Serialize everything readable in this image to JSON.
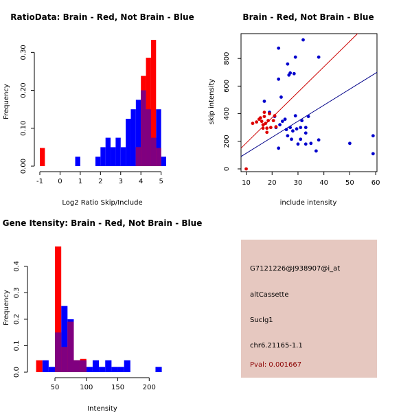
{
  "colors": {
    "red": "#ff0000",
    "blue": "#0000ff",
    "overlap": "#800080",
    "dot_red": "#dd0000",
    "dot_blue": "#0000cc",
    "line_red": "#cc0000",
    "line_blue": "#000088",
    "panel_bg": "#e6c8c0",
    "pval": "#8b0000"
  },
  "chart_data": [
    {
      "type": "histogram",
      "title": "RatioData: Brain - Red, Not Brain - Blue",
      "xlabel": "Log2 Ratio Skip/Include",
      "ylabel": "Frequency",
      "xlim": [
        -1,
        5.25
      ],
      "ylim": [
        0,
        0.335
      ],
      "xticks": [
        -1,
        0,
        1,
        2,
        3,
        4,
        5
      ],
      "yticks": [
        0.0,
        0.1,
        0.2,
        0.3
      ],
      "ytick_labels": [
        "0.00",
        "0.10",
        "0.20",
        "0.30"
      ],
      "bin_width": 0.25,
      "series": [
        {
          "name": "Not Brain",
          "color": "blue",
          "bins": [
            [
              0.75,
              0.025
            ],
            [
              1.75,
              0.025
            ],
            [
              2.0,
              0.05
            ],
            [
              2.25,
              0.075
            ],
            [
              2.5,
              0.05
            ],
            [
              2.75,
              0.075
            ],
            [
              3.0,
              0.05
            ],
            [
              3.25,
              0.125
            ],
            [
              3.5,
              0.15
            ],
            [
              3.75,
              0.175
            ],
            [
              4.0,
              0.2
            ],
            [
              4.25,
              0.15
            ],
            [
              4.5,
              0.075
            ],
            [
              4.75,
              0.15
            ],
            [
              5.0,
              0.025
            ]
          ]
        },
        {
          "name": "Brain",
          "color": "red",
          "bins": [
            [
              -1.0,
              0.048
            ],
            [
              3.75,
              0.05
            ],
            [
              4.0,
              0.238
            ],
            [
              4.25,
              0.286
            ],
            [
              4.5,
              0.333
            ],
            [
              4.75,
              0.048
            ]
          ]
        }
      ]
    },
    {
      "type": "scatter",
      "title": "Brain - Red, Not Brain - Blue",
      "xlabel": "include intensity",
      "ylabel": "skip intensity",
      "xlim": [
        8,
        60.5
      ],
      "ylim": [
        -20,
        980
      ],
      "xticks": [
        10,
        20,
        30,
        40,
        50,
        60
      ],
      "yticks": [
        0,
        200,
        400,
        600,
        800
      ],
      "series": [
        {
          "name": "Not Brain",
          "color": "blue",
          "points": [
            [
              32,
              935
            ],
            [
              22.5,
              875
            ],
            [
              38,
              810
            ],
            [
              26,
              760
            ],
            [
              27,
              695
            ],
            [
              28.5,
              690
            ],
            [
              29,
              810
            ],
            [
              22.5,
              650
            ],
            [
              26.5,
              680
            ],
            [
              23.5,
              520
            ],
            [
              17,
              490
            ],
            [
              19,
              410
            ],
            [
              21,
              380
            ],
            [
              25,
              360
            ],
            [
              29,
              385
            ],
            [
              34,
              380
            ],
            [
              21.5,
              300
            ],
            [
              23,
              320
            ],
            [
              24,
              345
            ],
            [
              25.5,
              285
            ],
            [
              27,
              300
            ],
            [
              28,
              275
            ],
            [
              29.5,
              290
            ],
            [
              31,
              300
            ],
            [
              31.5,
              350
            ],
            [
              33,
              300
            ],
            [
              33,
              260
            ],
            [
              26,
              240
            ],
            [
              27.5,
              215
            ],
            [
              31,
              215
            ],
            [
              30,
              180
            ],
            [
              33,
              180
            ],
            [
              35,
              185
            ],
            [
              37,
              130
            ],
            [
              38,
              210
            ],
            [
              22.5,
              150
            ],
            [
              50,
              185
            ],
            [
              59,
              240
            ],
            [
              59,
              110
            ]
          ]
        },
        {
          "name": "Brain",
          "color": "red",
          "points": [
            [
              10,
              0
            ],
            [
              12.5,
              330
            ],
            [
              14,
              340
            ],
            [
              15,
              360
            ],
            [
              15.5,
              370
            ],
            [
              16,
              345
            ],
            [
              16.5,
              320
            ],
            [
              17,
              380
            ],
            [
              17,
              410
            ],
            [
              17.5,
              330
            ],
            [
              18,
              295
            ],
            [
              18.5,
              350
            ],
            [
              19,
              400
            ],
            [
              19.5,
              300
            ],
            [
              20.5,
              350
            ],
            [
              21,
              385
            ],
            [
              21.5,
              305
            ],
            [
              16.5,
              295
            ],
            [
              18,
              265
            ]
          ]
        }
      ],
      "fit_lines": [
        {
          "name": "Brain fit",
          "color": "red",
          "from": [
            8,
            150
          ],
          "to": [
            53,
            980
          ]
        },
        {
          "name": "Not Brain fit",
          "color": "blue",
          "from": [
            8,
            90
          ],
          "to": [
            60.5,
            700
          ]
        }
      ]
    },
    {
      "type": "histogram",
      "title": "Gene Itensity: Brain - Red, Not Brain - Blue",
      "xlabel": "Intensity",
      "ylabel": "Frequency",
      "xlim": [
        15,
        227
      ],
      "ylim": [
        0,
        0.48
      ],
      "xticks": [
        50,
        100,
        150,
        200
      ],
      "yticks": [
        0.0,
        0.1,
        0.2,
        0.3,
        0.4
      ],
      "ytick_labels": [
        "0.0",
        "0.1",
        "0.2",
        "0.3",
        "0.4"
      ],
      "bin_width": 10,
      "series": [
        {
          "name": "Not Brain",
          "color": "blue",
          "bins": [
            [
              20,
              0.0
            ],
            [
              30,
              0.045
            ],
            [
              40,
              0.02
            ],
            [
              50,
              0.15
            ],
            [
              60,
              0.25
            ],
            [
              70,
              0.2
            ],
            [
              80,
              0.045
            ],
            [
              90,
              0.045
            ],
            [
              100,
              0.02
            ],
            [
              110,
              0.045
            ],
            [
              120,
              0.02
            ],
            [
              130,
              0.045
            ],
            [
              140,
              0.02
            ],
            [
              150,
              0.02
            ],
            [
              160,
              0.045
            ],
            [
              210,
              0.02
            ]
          ]
        },
        {
          "name": "Brain",
          "color": "red",
          "bins": [
            [
              20,
              0.045
            ],
            [
              50,
              0.475
            ],
            [
              60,
              0.095
            ],
            [
              70,
              0.19
            ],
            [
              80,
              0.045
            ],
            [
              90,
              0.05
            ]
          ]
        }
      ]
    }
  ],
  "info": {
    "probe": "G7121226@J938907@i_at",
    "event": "altCassette",
    "gene": "Suclg1",
    "locus": "chr6.21165-1.1",
    "pval": "Pval: 0.001667"
  }
}
